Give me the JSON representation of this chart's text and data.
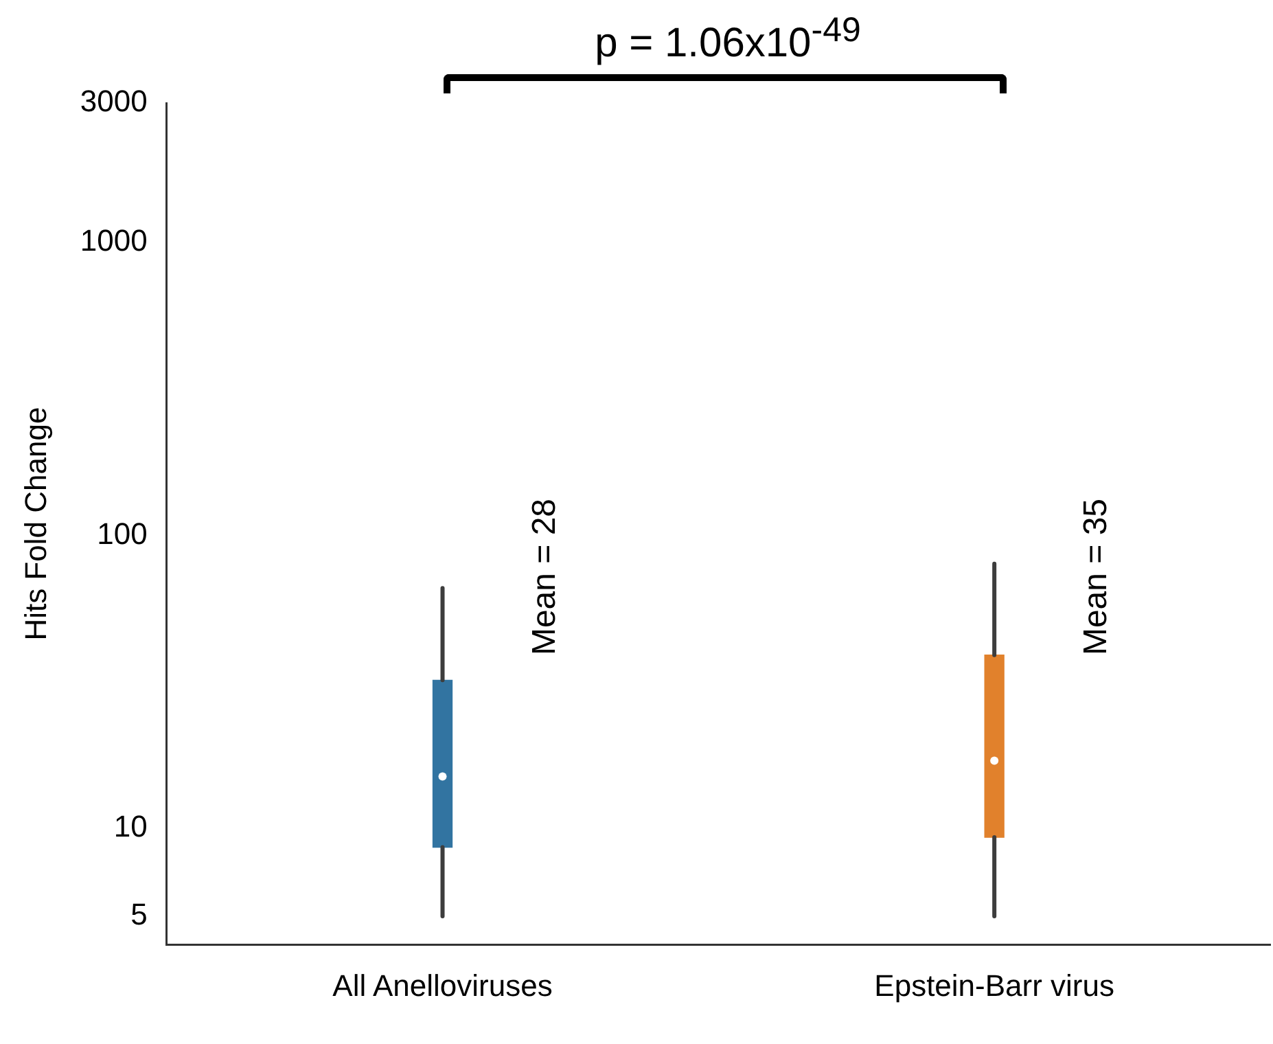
{
  "chart_data": {
    "type": "box",
    "title": "p = 1.06x10$^{-49}$",
    "ylabel": "Hits Fold Change",
    "categories": [
      "All Anelloviruses",
      "Epstein-Barr virus"
    ],
    "boxes": [
      {
        "low": 5,
        "q1": 8.6,
        "median": 15,
        "q3": 32,
        "high": 66
      },
      {
        "low": 5,
        "q1": 9.3,
        "median": 17,
        "q3": 39,
        "high": 80
      }
    ],
    "colors": [
      "#3274a1",
      "#e1812c"
    ],
    "log": true,
    "ylim": [
      4,
      3000
    ],
    "yticks": [
      5,
      10,
      100,
      1000,
      3000
    ],
    "grid": false,
    "legend": false,
    "annotations": [
      "Mean = 28",
      "Mean = 35"
    ]
  }
}
